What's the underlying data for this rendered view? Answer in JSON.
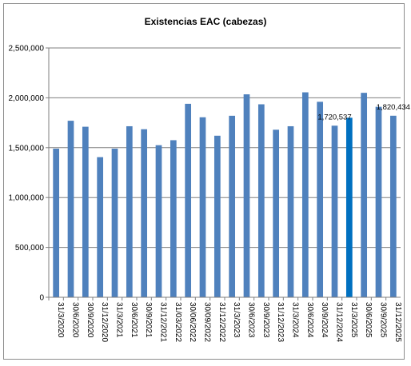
{
  "chart_data": {
    "type": "bar",
    "title": "Existencias EAC (cabezas)",
    "xlabel": "",
    "ylabel": "",
    "ylim": [
      0,
      2500000
    ],
    "yticks": [
      0,
      500000,
      1000000,
      1500000,
      2000000,
      2500000
    ],
    "ytick_labels": [
      "0",
      "500,000",
      "1,000,000",
      "1,500,000",
      "2,000,000",
      "2,500,000"
    ],
    "grid": "horizontal",
    "legend": "none",
    "bar_color": "#4f81bd",
    "highlight_color": "#0070c0",
    "highlight_index": 20,
    "categories": [
      "31/3/2020",
      "30/6/2020",
      "30/9/2020",
      "31/12/2020",
      "31/3/2021",
      "30/6/2021",
      "30/9/2021",
      "31/12/2021",
      "31/03/2022",
      "30/06/2022",
      "30/09/2022",
      "31/12/2022",
      "31/3/2023",
      "30/6/2023",
      "30/9/2023",
      "31/12/2023",
      "31/3/2024",
      "30/6/2024",
      "30/9/2024",
      "31/12/2024",
      "31/3/2025",
      "30/6/2025",
      "30/9/2025",
      "31/12/2025"
    ],
    "values": [
      1490000,
      1770000,
      1710000,
      1405000,
      1490000,
      1715000,
      1685000,
      1525000,
      1575000,
      1940000,
      1805000,
      1620000,
      1820000,
      2035000,
      1935000,
      1680000,
      1715000,
      2055000,
      1960000,
      1720537,
      1800000,
      2050000,
      1910000,
      1820434
    ],
    "data_labels": [
      {
        "index": 19,
        "text": "1,720,537"
      },
      {
        "index": 23,
        "text": "1,820,434"
      }
    ]
  }
}
